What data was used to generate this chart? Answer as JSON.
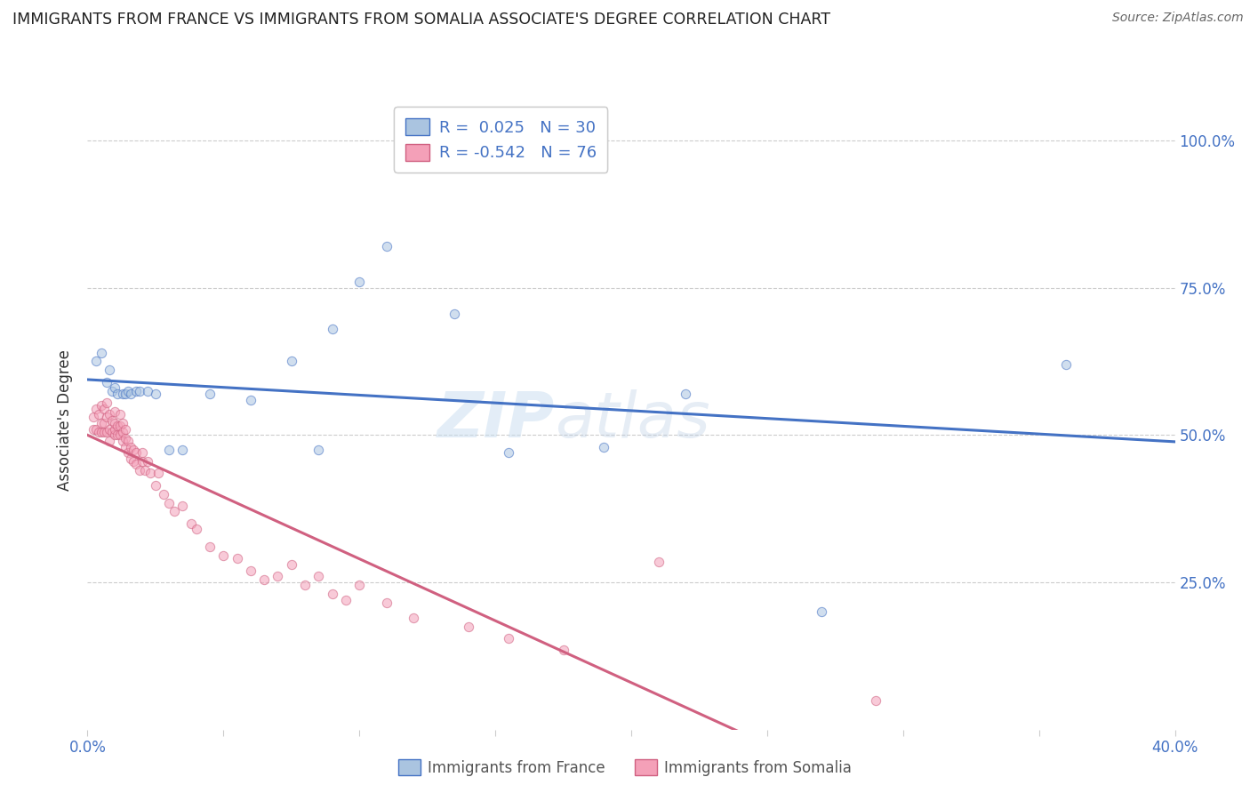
{
  "title": "IMMIGRANTS FROM FRANCE VS IMMIGRANTS FROM SOMALIA ASSOCIATE'S DEGREE CORRELATION CHART",
  "source": "Source: ZipAtlas.com",
  "ylabel": "Associate's Degree",
  "xlabel_france": "Immigrants from France",
  "xlabel_somalia": "Immigrants from Somalia",
  "r_france": 0.025,
  "n_france": 30,
  "r_somalia": -0.542,
  "n_somalia": 76,
  "france_color": "#aac4e0",
  "somalia_color": "#f4a0b8",
  "france_line_color": "#4472c4",
  "somalia_line_color": "#d06080",
  "xlim": [
    0.0,
    0.4
  ],
  "ylim": [
    0.0,
    1.05
  ],
  "background_color": "#ffffff",
  "grid_color": "#cccccc",
  "scatter_size": 55,
  "scatter_alpha": 0.55,
  "france_scatter_x": [
    0.003,
    0.005,
    0.007,
    0.008,
    0.009,
    0.01,
    0.011,
    0.013,
    0.014,
    0.015,
    0.016,
    0.018,
    0.019,
    0.022,
    0.025,
    0.03,
    0.035,
    0.045,
    0.06,
    0.075,
    0.085,
    0.09,
    0.1,
    0.11,
    0.135,
    0.155,
    0.19,
    0.22,
    0.27,
    0.36
  ],
  "france_scatter_y": [
    0.625,
    0.64,
    0.59,
    0.61,
    0.575,
    0.58,
    0.57,
    0.57,
    0.57,
    0.575,
    0.57,
    0.575,
    0.575,
    0.575,
    0.57,
    0.475,
    0.475,
    0.57,
    0.56,
    0.625,
    0.475,
    0.68,
    0.76,
    0.82,
    0.705,
    0.47,
    0.48,
    0.57,
    0.2,
    0.62
  ],
  "somalia_scatter_x": [
    0.002,
    0.002,
    0.003,
    0.003,
    0.004,
    0.004,
    0.005,
    0.005,
    0.005,
    0.006,
    0.006,
    0.006,
    0.007,
    0.007,
    0.007,
    0.008,
    0.008,
    0.008,
    0.009,
    0.009,
    0.01,
    0.01,
    0.01,
    0.01,
    0.011,
    0.011,
    0.012,
    0.012,
    0.012,
    0.013,
    0.013,
    0.013,
    0.014,
    0.014,
    0.014,
    0.015,
    0.015,
    0.016,
    0.016,
    0.017,
    0.017,
    0.018,
    0.018,
    0.019,
    0.02,
    0.02,
    0.021,
    0.022,
    0.023,
    0.025,
    0.026,
    0.028,
    0.03,
    0.032,
    0.035,
    0.038,
    0.04,
    0.045,
    0.05,
    0.055,
    0.06,
    0.065,
    0.07,
    0.075,
    0.08,
    0.085,
    0.09,
    0.095,
    0.1,
    0.11,
    0.12,
    0.14,
    0.155,
    0.175,
    0.21,
    0.29
  ],
  "somalia_scatter_y": [
    0.51,
    0.53,
    0.51,
    0.545,
    0.505,
    0.535,
    0.505,
    0.52,
    0.55,
    0.505,
    0.52,
    0.545,
    0.505,
    0.53,
    0.555,
    0.49,
    0.51,
    0.535,
    0.505,
    0.525,
    0.5,
    0.51,
    0.52,
    0.54,
    0.5,
    0.515,
    0.5,
    0.515,
    0.535,
    0.49,
    0.505,
    0.52,
    0.48,
    0.495,
    0.51,
    0.47,
    0.49,
    0.46,
    0.48,
    0.455,
    0.475,
    0.45,
    0.47,
    0.44,
    0.455,
    0.47,
    0.44,
    0.455,
    0.435,
    0.415,
    0.435,
    0.4,
    0.385,
    0.37,
    0.38,
    0.35,
    0.34,
    0.31,
    0.295,
    0.29,
    0.27,
    0.255,
    0.26,
    0.28,
    0.245,
    0.26,
    0.23,
    0.22,
    0.245,
    0.215,
    0.19,
    0.175,
    0.155,
    0.135,
    0.285,
    0.05
  ]
}
